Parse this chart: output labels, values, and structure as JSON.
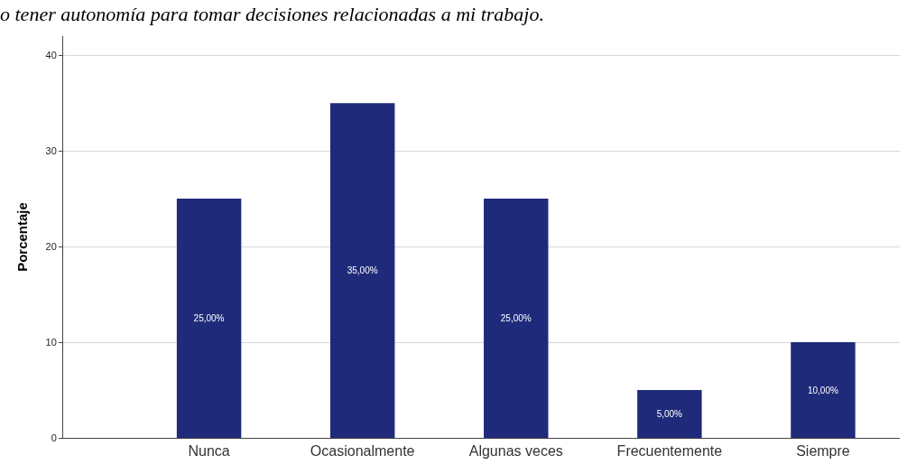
{
  "chart_data": {
    "type": "bar",
    "title": "o tener autonomía para tomar decisiones relacionadas a mi trabajo.",
    "ylabel": "Porcentaje",
    "categories": [
      "Nunca",
      "Ocasionalmente",
      "Algunas veces",
      "Frecuentemente",
      "Siempre"
    ],
    "values": [
      25,
      35,
      25,
      5,
      10
    ],
    "value_labels": [
      "25,00%",
      "35,00%",
      "25,00%",
      "5,00%",
      "10,00%"
    ],
    "color": "#1f2a7a",
    "ylim": [
      0,
      42
    ],
    "yticks": [
      0,
      10,
      20,
      30,
      40
    ],
    "grid": "y",
    "legend": false
  }
}
